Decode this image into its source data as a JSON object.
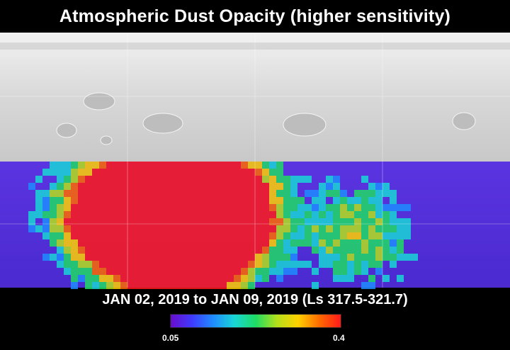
{
  "title": "Atmospheric Dust Opacity (higher sensitivity)",
  "date_range": "JAN 02, 2019 to JAN 09, 2019 (Ls 317.5-321.7)",
  "colorbar": {
    "min_label": "0.05",
    "max_label": "0.4",
    "min_value": 0.05,
    "max_value": 0.4,
    "colors": [
      "#6a0dcc",
      "#3f3aff",
      "#1f8cff",
      "#19d6d6",
      "#1edc64",
      "#b4e01a",
      "#ffd000",
      "#ff6a00",
      "#ff1a1a"
    ]
  },
  "map": {
    "terrain_color": "#d6d6d6",
    "background_opacity_color": "#5a2fd6",
    "grid_color": "#ffffff"
  }
}
